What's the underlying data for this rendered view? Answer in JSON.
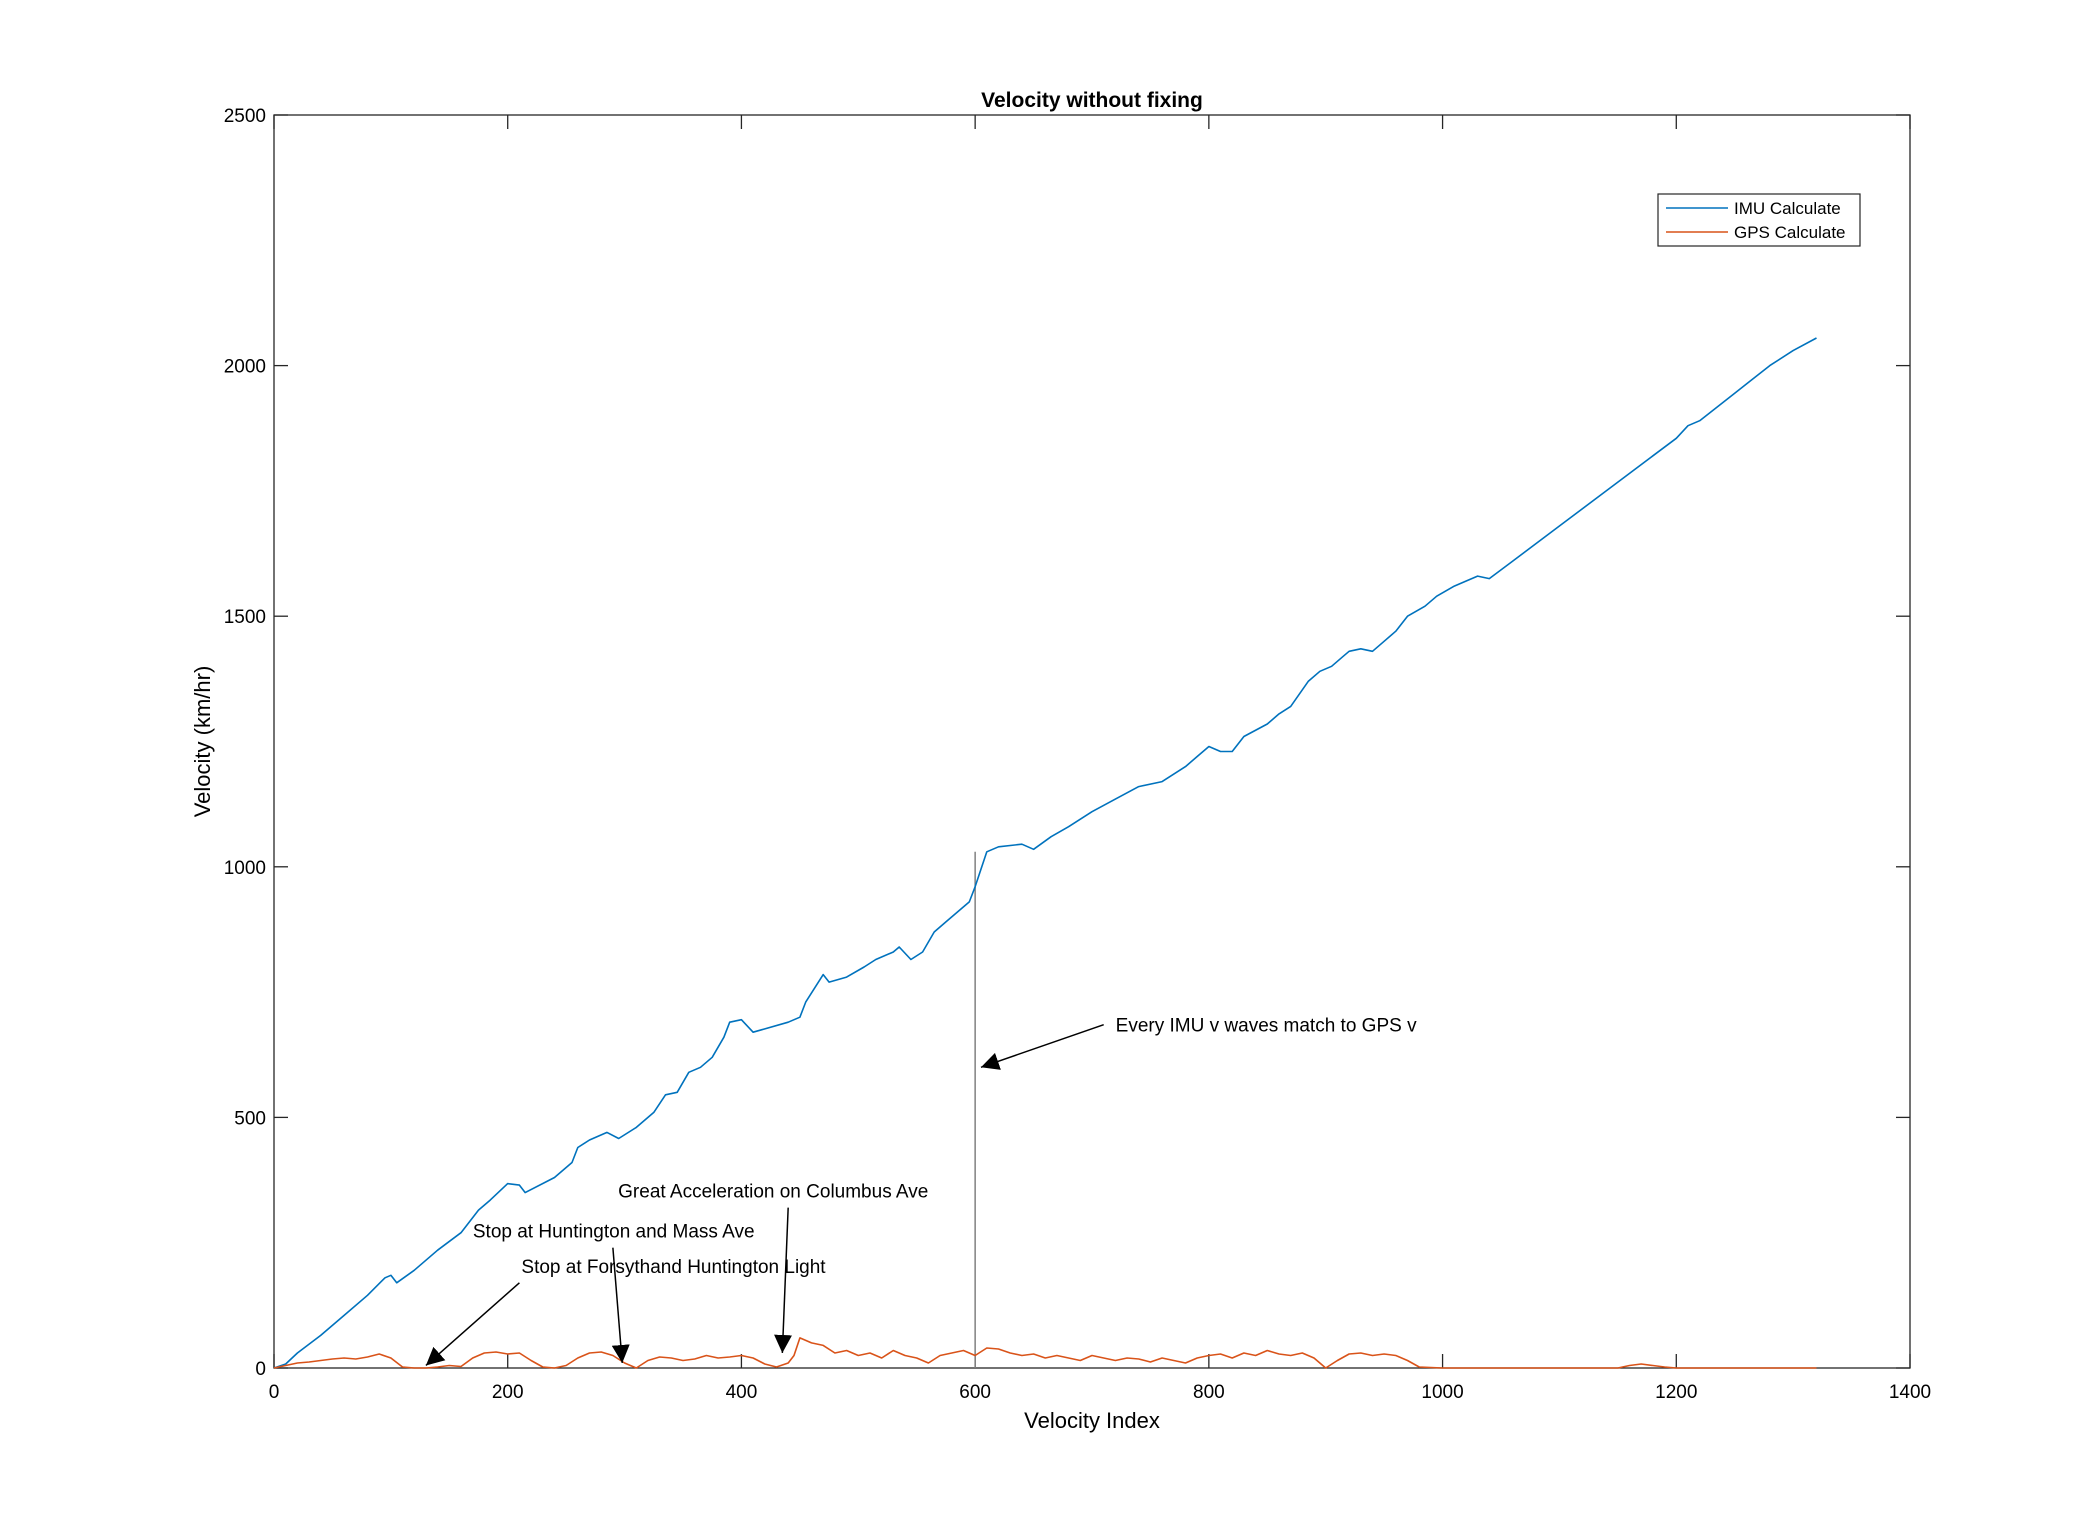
{
  "chart_data": {
    "type": "line",
    "title": "Velocity without fixing",
    "xlabel": "Velocity Index",
    "ylabel": "Velocity (km/hr)",
    "xlim": [
      0,
      1400
    ],
    "ylim": [
      0,
      2500
    ],
    "xticks": [
      0,
      200,
      400,
      600,
      800,
      1000,
      1200,
      1400
    ],
    "yticks": [
      0,
      500,
      1000,
      1500,
      2000,
      2500
    ],
    "grid": false,
    "legend": "top-right",
    "series": [
      {
        "name": "IMU Calculate",
        "color": "#0072BD",
        "points": [
          [
            0,
            0
          ],
          [
            10,
            8
          ],
          [
            20,
            30
          ],
          [
            40,
            65
          ],
          [
            60,
            105
          ],
          [
            80,
            145
          ],
          [
            95,
            180
          ],
          [
            100,
            185
          ],
          [
            105,
            170
          ],
          [
            120,
            195
          ],
          [
            140,
            235
          ],
          [
            160,
            270
          ],
          [
            175,
            315
          ],
          [
            185,
            335
          ],
          [
            200,
            368
          ],
          [
            210,
            365
          ],
          [
            215,
            350
          ],
          [
            240,
            380
          ],
          [
            255,
            410
          ],
          [
            260,
            440
          ],
          [
            270,
            455
          ],
          [
            285,
            470
          ],
          [
            295,
            458
          ],
          [
            310,
            480
          ],
          [
            325,
            510
          ],
          [
            335,
            545
          ],
          [
            345,
            550
          ],
          [
            355,
            590
          ],
          [
            365,
            600
          ],
          [
            375,
            620
          ],
          [
            385,
            660
          ],
          [
            390,
            690
          ],
          [
            400,
            695
          ],
          [
            410,
            670
          ],
          [
            440,
            690
          ],
          [
            450,
            700
          ],
          [
            455,
            730
          ],
          [
            470,
            785
          ],
          [
            475,
            770
          ],
          [
            490,
            780
          ],
          [
            505,
            800
          ],
          [
            515,
            815
          ],
          [
            530,
            830
          ],
          [
            535,
            840
          ],
          [
            545,
            815
          ],
          [
            555,
            830
          ],
          [
            565,
            870
          ],
          [
            575,
            890
          ],
          [
            585,
            910
          ],
          [
            595,
            930
          ],
          [
            600,
            960
          ],
          [
            610,
            1030
          ],
          [
            620,
            1040
          ],
          [
            640,
            1045
          ],
          [
            650,
            1035
          ],
          [
            665,
            1060
          ],
          [
            680,
            1080
          ],
          [
            700,
            1110
          ],
          [
            720,
            1135
          ],
          [
            740,
            1160
          ],
          [
            760,
            1170
          ],
          [
            780,
            1200
          ],
          [
            790,
            1220
          ],
          [
            800,
            1240
          ],
          [
            810,
            1230
          ],
          [
            820,
            1230
          ],
          [
            830,
            1260
          ],
          [
            850,
            1285
          ],
          [
            860,
            1305
          ],
          [
            870,
            1320
          ],
          [
            885,
            1370
          ],
          [
            895,
            1390
          ],
          [
            905,
            1400
          ],
          [
            915,
            1420
          ],
          [
            920,
            1430
          ],
          [
            930,
            1435
          ],
          [
            940,
            1430
          ],
          [
            950,
            1450
          ],
          [
            960,
            1470
          ],
          [
            970,
            1500
          ],
          [
            985,
            1520
          ],
          [
            995,
            1540
          ],
          [
            1010,
            1560
          ],
          [
            1020,
            1570
          ],
          [
            1030,
            1580
          ],
          [
            1040,
            1575
          ],
          [
            1060,
            1610
          ],
          [
            1100,
            1680
          ],
          [
            1140,
            1750
          ],
          [
            1180,
            1820
          ],
          [
            1200,
            1855
          ],
          [
            1210,
            1880
          ],
          [
            1220,
            1890
          ],
          [
            1250,
            1945
          ],
          [
            1280,
            2000
          ],
          [
            1300,
            2030
          ],
          [
            1320,
            2055
          ]
        ]
      },
      {
        "name": "GPS Calculate",
        "color": "#D95319",
        "points": [
          [
            0,
            0
          ],
          [
            10,
            5
          ],
          [
            20,
            10
          ],
          [
            30,
            12
          ],
          [
            40,
            15
          ],
          [
            50,
            18
          ],
          [
            60,
            20
          ],
          [
            70,
            18
          ],
          [
            80,
            22
          ],
          [
            90,
            28
          ],
          [
            100,
            20
          ],
          [
            110,
            2
          ],
          [
            120,
            0
          ],
          [
            130,
            0
          ],
          [
            140,
            2
          ],
          [
            150,
            5
          ],
          [
            160,
            3
          ],
          [
            170,
            20
          ],
          [
            180,
            30
          ],
          [
            190,
            32
          ],
          [
            200,
            28
          ],
          [
            210,
            30
          ],
          [
            220,
            15
          ],
          [
            230,
            2
          ],
          [
            240,
            0
          ],
          [
            250,
            5
          ],
          [
            260,
            20
          ],
          [
            270,
            30
          ],
          [
            280,
            32
          ],
          [
            290,
            25
          ],
          [
            300,
            10
          ],
          [
            310,
            0
          ],
          [
            320,
            15
          ],
          [
            330,
            22
          ],
          [
            340,
            20
          ],
          [
            350,
            15
          ],
          [
            360,
            18
          ],
          [
            370,
            25
          ],
          [
            380,
            20
          ],
          [
            390,
            22
          ],
          [
            400,
            25
          ],
          [
            410,
            20
          ],
          [
            420,
            8
          ],
          [
            430,
            2
          ],
          [
            440,
            10
          ],
          [
            445,
            25
          ],
          [
            450,
            60
          ],
          [
            460,
            50
          ],
          [
            470,
            45
          ],
          [
            480,
            30
          ],
          [
            490,
            35
          ],
          [
            500,
            25
          ],
          [
            510,
            30
          ],
          [
            520,
            20
          ],
          [
            530,
            35
          ],
          [
            540,
            25
          ],
          [
            550,
            20
          ],
          [
            560,
            10
          ],
          [
            570,
            25
          ],
          [
            580,
            30
          ],
          [
            590,
            35
          ],
          [
            600,
            25
          ],
          [
            610,
            40
          ],
          [
            620,
            38
          ],
          [
            630,
            30
          ],
          [
            640,
            25
          ],
          [
            650,
            28
          ],
          [
            660,
            20
          ],
          [
            670,
            25
          ],
          [
            680,
            20
          ],
          [
            690,
            15
          ],
          [
            700,
            25
          ],
          [
            710,
            20
          ],
          [
            720,
            15
          ],
          [
            730,
            20
          ],
          [
            740,
            18
          ],
          [
            750,
            12
          ],
          [
            760,
            20
          ],
          [
            770,
            15
          ],
          [
            780,
            10
          ],
          [
            790,
            20
          ],
          [
            800,
            25
          ],
          [
            810,
            28
          ],
          [
            820,
            20
          ],
          [
            830,
            30
          ],
          [
            840,
            25
          ],
          [
            850,
            35
          ],
          [
            860,
            28
          ],
          [
            870,
            25
          ],
          [
            880,
            30
          ],
          [
            890,
            20
          ],
          [
            900,
            0
          ],
          [
            910,
            15
          ],
          [
            920,
            28
          ],
          [
            930,
            30
          ],
          [
            940,
            25
          ],
          [
            950,
            28
          ],
          [
            960,
            25
          ],
          [
            970,
            15
          ],
          [
            980,
            2
          ],
          [
            1000,
            0
          ],
          [
            1050,
            0
          ],
          [
            1100,
            0
          ],
          [
            1150,
            0
          ],
          [
            1160,
            5
          ],
          [
            1170,
            8
          ],
          [
            1180,
            5
          ],
          [
            1190,
            2
          ],
          [
            1200,
            0
          ],
          [
            1250,
            0
          ],
          [
            1300,
            0
          ],
          [
            1320,
            0
          ]
        ]
      }
    ],
    "annotations": [
      {
        "text": "Every IMU v waves match to GPS v",
        "text_at": [
          710,
          685
        ],
        "arrow_to": [
          605,
          600
        ]
      },
      {
        "text": "Great Acceleration on Columbus Ave",
        "text_at": [
          440,
          320
        ],
        "arrow_to": [
          435,
          30
        ]
      },
      {
        "text": "Stop at Huntington and Mass Ave",
        "text_at": [
          290,
          240
        ],
        "arrow_to": [
          298,
          10
        ]
      },
      {
        "text": "Stop at Forsythand Huntington Light",
        "text_at": [
          210,
          170
        ],
        "arrow_to": [
          130,
          5
        ]
      }
    ],
    "vertical_marker": {
      "x": 600,
      "y_from": 0,
      "y_to": 1030,
      "color": "#808080"
    }
  }
}
